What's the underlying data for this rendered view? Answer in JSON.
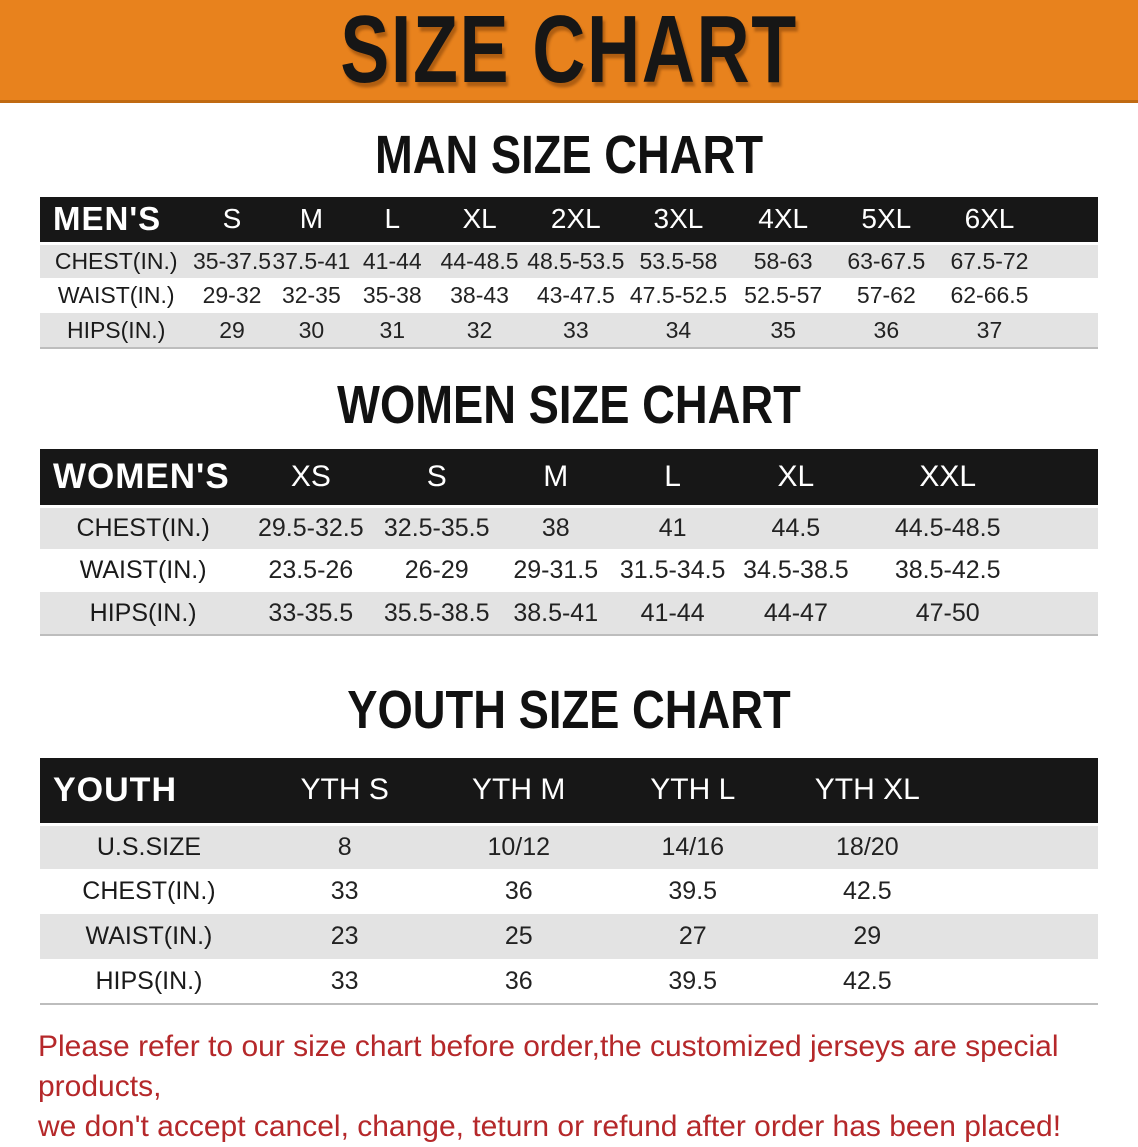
{
  "banner": {
    "title": "SIZE CHART"
  },
  "sections": {
    "men": {
      "heading": "MAN SIZE CHART"
    },
    "women": {
      "heading": "WOMEN SIZE CHART"
    },
    "youth": {
      "heading": "YOUTH SIZE CHART"
    }
  },
  "tables": {
    "men": {
      "label": "MEN'S",
      "columns": [
        "S",
        "M",
        "L",
        "XL",
        "2XL",
        "3XL",
        "4XL",
        "5XL",
        "6XL"
      ],
      "rows": [
        {
          "label": "CHEST(IN.)",
          "values": [
            "35-37.5",
            "37.5-41",
            "41-44",
            "44-48.5",
            "48.5-53.5",
            "53.5-58",
            "58-63",
            "63-67.5",
            "67.5-72"
          ]
        },
        {
          "label": "WAIST(IN.)",
          "values": [
            "29-32",
            "32-35",
            "35-38",
            "38-43",
            "43-47.5",
            "47.5-52.5",
            "52.5-57",
            "57-62",
            "62-66.5"
          ]
        },
        {
          "label": "HIPS(IN.)",
          "values": [
            "29",
            "30",
            "31",
            "32",
            "33",
            "34",
            "35",
            "36",
            "37"
          ]
        }
      ]
    },
    "women": {
      "label": "WOMEN'S",
      "columns": [
        "XS",
        "S",
        "M",
        "L",
        "XL",
        "XXL"
      ],
      "rows": [
        {
          "label": "CHEST(IN.)",
          "values": [
            "29.5-32.5",
            "32.5-35.5",
            "38",
            "41",
            "44.5",
            "44.5-48.5"
          ]
        },
        {
          "label": "WAIST(IN.)",
          "values": [
            "23.5-26",
            "26-29",
            "29-31.5",
            "31.5-34.5",
            "34.5-38.5",
            "38.5-42.5"
          ]
        },
        {
          "label": "HIPS(IN.)",
          "values": [
            "33-35.5",
            "35.5-38.5",
            "38.5-41",
            "41-44",
            "44-47",
            "47-50"
          ]
        }
      ]
    },
    "youth": {
      "label": "YOUTH",
      "columns": [
        "YTH S",
        "YTH M",
        "YTH L",
        "YTH XL"
      ],
      "rows": [
        {
          "label": "U.S.SIZE",
          "values": [
            "8",
            "10/12",
            "14/16",
            "18/20"
          ]
        },
        {
          "label": "CHEST(IN.)",
          "values": [
            "33",
            "36",
            "39.5",
            "42.5"
          ]
        },
        {
          "label": "WAIST(IN.)",
          "values": [
            "23",
            "25",
            "27",
            "29"
          ]
        },
        {
          "label": "HIPS(IN.)",
          "values": [
            "33",
            "36",
            "39.5",
            "42.5"
          ]
        }
      ]
    }
  },
  "footer": {
    "line1": "Please refer to our size chart before order,the customized jerseys are special products,",
    "line2": "we don't accept cancel, change, teturn or refund after order has been placed!"
  },
  "colors": {
    "banner_orange": "#E8821D",
    "banner_border": "#C06A12",
    "header_black": "#171717",
    "header_text": "#FFFFFF",
    "row_gray": "#E3E3E3",
    "row_white": "#FFFFFF",
    "data_text": "#222222",
    "heading_text": "#111111",
    "footer_red": "#B5282A"
  }
}
